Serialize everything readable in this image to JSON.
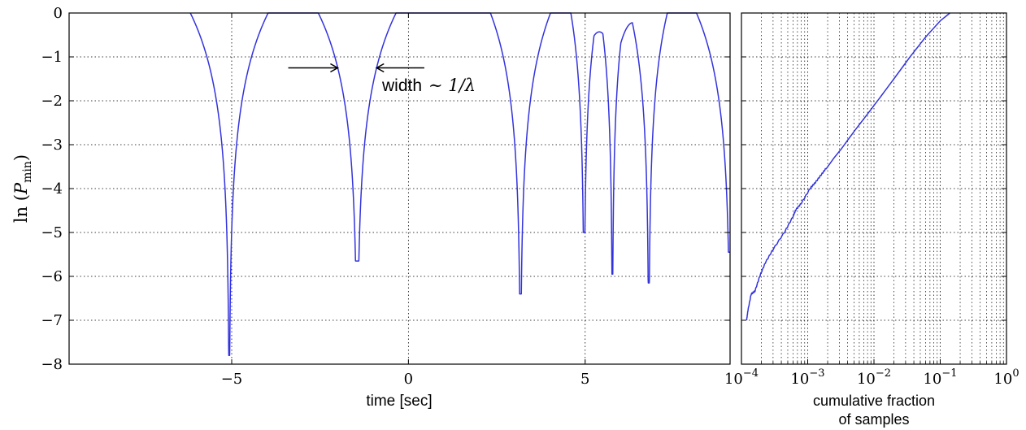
{
  "chart_data": [
    {
      "type": "line",
      "xlabel": "time [sec]",
      "ylabel": "ln (P_min)",
      "xlim": [
        -9.6,
        9.1
      ],
      "ylim": [
        -8,
        0
      ],
      "grid": true,
      "x_ticks": [
        -5,
        0,
        5
      ],
      "x_tick_labels": [
        "−5",
        "0",
        "5"
      ],
      "y_ticks": [
        0,
        -1,
        -2,
        -3,
        -4,
        -5,
        -6,
        -7,
        -8
      ],
      "y_tick_labels": [
        "0",
        "−1",
        "−2",
        "−3",
        "−4",
        "−5",
        "−6",
        "−7",
        "−8"
      ],
      "line_color": "#3333dd",
      "dips": [
        {
          "t": -5.07,
          "min": -7.8,
          "width": 2.2
        },
        {
          "t": -1.45,
          "min": -5.65,
          "width": 2.2
        },
        {
          "t": 3.17,
          "min": -6.4,
          "width": 1.7
        },
        {
          "t": 4.97,
          "min": -5.0,
          "width": 0.75
        },
        {
          "t": 5.77,
          "min": -5.95,
          "width": 0.7
        },
        {
          "t": 6.8,
          "min": -6.15,
          "width": 1.05
        },
        {
          "t": 9.1,
          "min": -5.45,
          "width": 1.9
        }
      ],
      "local_peaks": [
        {
          "t": 5.4,
          "value": -0.43
        },
        {
          "t": 6.35,
          "value": -0.22
        }
      ],
      "annotation": {
        "label_prefix": "width",
        "label_math": "∼ 1/λ",
        "arrow_left": {
          "from": -3.4,
          "to": -2.0,
          "y": -1.25
        },
        "arrow_right": {
          "from": 0.45,
          "to": -0.9,
          "y": -1.25
        }
      }
    },
    {
      "type": "line",
      "xlabel_lines": [
        "cumulative fraction",
        "of samples"
      ],
      "x_scale": "log",
      "xlim": [
        0.0001,
        1
      ],
      "ylim": [
        -8,
        0
      ],
      "grid": true,
      "x_tick_labels": [
        {
          "base": "10",
          "exp": "−4"
        },
        {
          "base": "10",
          "exp": "−3"
        },
        {
          "base": "10",
          "exp": "−2"
        },
        {
          "base": "10",
          "exp": "−1"
        },
        {
          "base": "10",
          "exp": "0"
        }
      ],
      "line_color": "#3333dd",
      "points": [
        {
          "x": 0.00012,
          "y": -7.0
        },
        {
          "x": 0.000125,
          "y": -6.8
        },
        {
          "x": 0.00014,
          "y": -6.42
        },
        {
          "x": 0.00016,
          "y": -6.35
        },
        {
          "x": 0.00019,
          "y": -6.0
        },
        {
          "x": 0.00023,
          "y": -5.7
        },
        {
          "x": 0.0003,
          "y": -5.4
        },
        {
          "x": 0.00045,
          "y": -5.0
        },
        {
          "x": 0.0006,
          "y": -4.65
        },
        {
          "x": 0.00066,
          "y": -4.5
        },
        {
          "x": 0.0008,
          "y": -4.35
        },
        {
          "x": 0.0011,
          "y": -4.0
        },
        {
          "x": 0.0013,
          "y": -3.88
        },
        {
          "x": 0.0016,
          "y": -3.7
        },
        {
          "x": 0.0019,
          "y": -3.55
        },
        {
          "x": 0.0025,
          "y": -3.3
        },
        {
          "x": 0.0032,
          "y": -3.1
        },
        {
          "x": 0.005,
          "y": -2.7
        },
        {
          "x": 0.008,
          "y": -2.3
        },
        {
          "x": 0.012,
          "y": -1.95
        },
        {
          "x": 0.02,
          "y": -1.5
        },
        {
          "x": 0.035,
          "y": -1.0
        },
        {
          "x": 0.06,
          "y": -0.55
        },
        {
          "x": 0.1,
          "y": -0.18
        },
        {
          "x": 0.14,
          "y": 0.0
        }
      ]
    }
  ]
}
